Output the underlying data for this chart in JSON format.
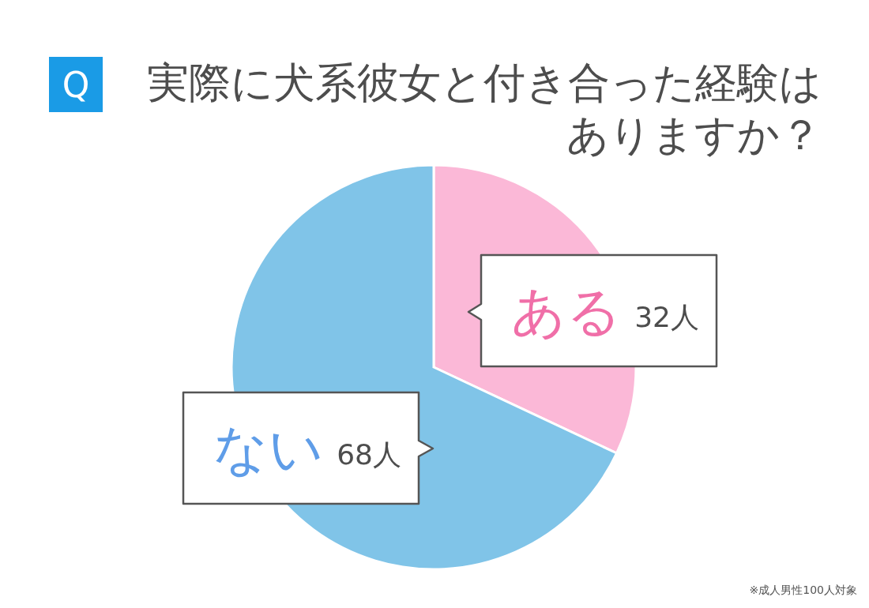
{
  "chart_data": {
    "type": "pie",
    "title": "実際に犬系彼女と付き合った経験はありますか？",
    "categories": [
      "ある",
      "ない"
    ],
    "values": [
      32,
      68
    ],
    "colors": [
      "#fbb8d7",
      "#80c4e8"
    ],
    "value_labels": [
      "32人",
      "68人"
    ],
    "annotations": [
      "Q",
      "※成人男性100人対象"
    ]
  }
}
